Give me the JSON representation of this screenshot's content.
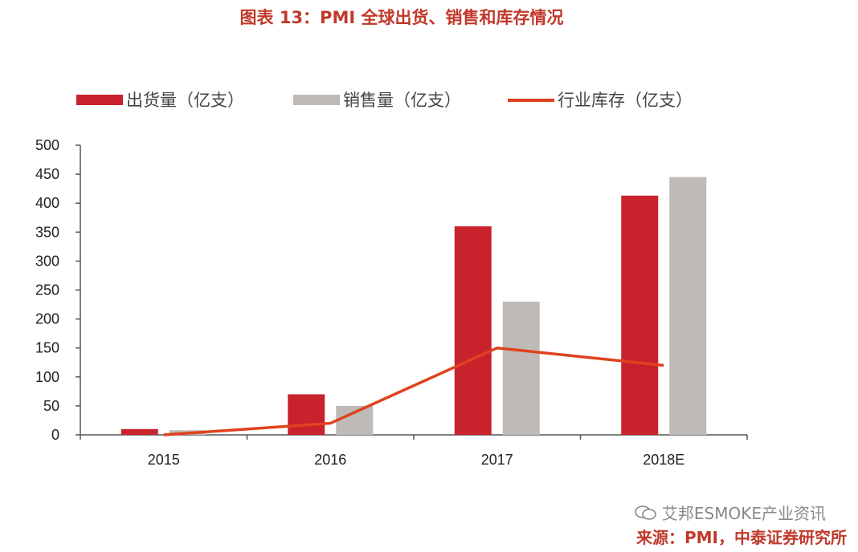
{
  "title": "图表 13：PMI 全球出货、销售和库存情况",
  "chart_data": {
    "type": "bar",
    "categories": [
      "2015",
      "2016",
      "2017",
      "2018E"
    ],
    "series": [
      {
        "name": "出货量（亿支）",
        "kind": "bar",
        "color": "#c8232c",
        "values": [
          10,
          70,
          360,
          413
        ]
      },
      {
        "name": "销售量（亿支）",
        "kind": "bar",
        "color": "#bfbab5",
        "values": [
          8,
          50,
          230,
          445
        ]
      },
      {
        "name": "行业库存（亿支）",
        "kind": "line",
        "color": "#e0421e",
        "values": [
          0,
          20,
          150,
          120
        ]
      }
    ],
    "ylim": [
      0,
      500
    ],
    "yticks": [
      0,
      50,
      100,
      150,
      200,
      250,
      300,
      350,
      400,
      450,
      500
    ],
    "legend_position": "top-left",
    "grid": false
  },
  "watermark": {
    "icon": "wechat-icon",
    "text": "艾邦ESMOKE产业资讯"
  },
  "source": "来源：PMI，中泰证券研究所"
}
